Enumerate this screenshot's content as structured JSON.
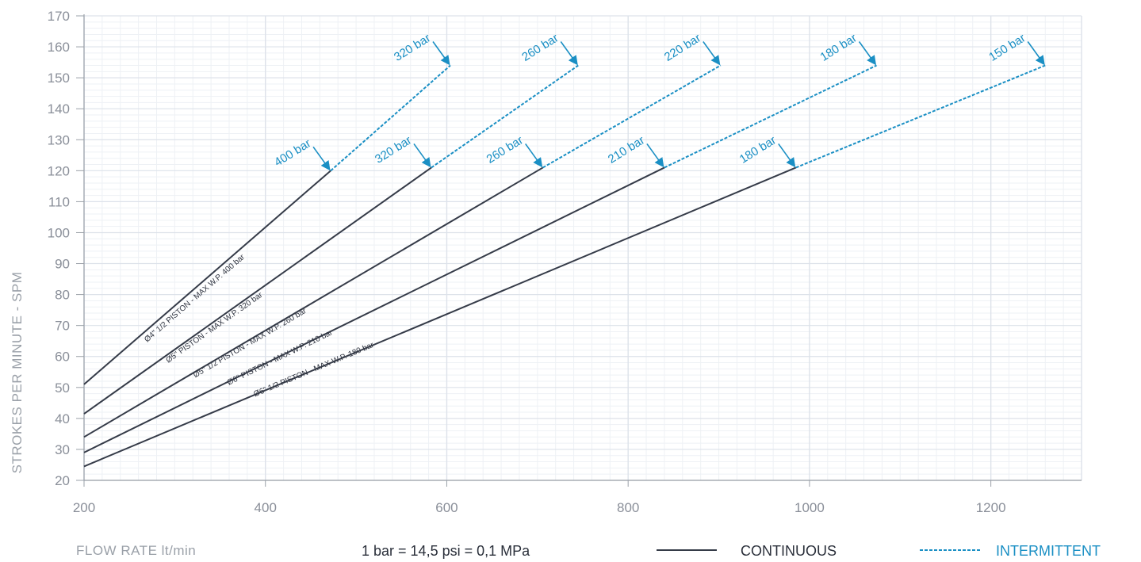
{
  "chart_data": {
    "type": "line",
    "xlabel": "FLOW RATE lt/min",
    "ylabel": "STROKES PER MINUTE - SPM",
    "xlim": [
      200,
      1300
    ],
    "ylim": [
      20,
      170
    ],
    "x_ticks": [
      "200",
      "400",
      "600",
      "800",
      "1000",
      "1200"
    ],
    "y_ticks": [
      "20",
      "30",
      "40",
      "50",
      "60",
      "70",
      "80",
      "90",
      "100",
      "110",
      "120",
      "130",
      "140",
      "150",
      "160",
      "170"
    ],
    "grid": true,
    "series": [
      {
        "name": "Ø4\" 1/2 PISTON - MAX W.P. 400 bar",
        "continuous": [
          [
            200,
            51
          ],
          [
            472,
            120
          ]
        ],
        "intermittent": [
          [
            472,
            120
          ],
          [
            604,
            154
          ]
        ],
        "continuous_pressure": "400 bar",
        "intermittent_pressure": "320 bar"
      },
      {
        "name": "Ø5\" PISTON - MAX W.P. 320 bar",
        "continuous": [
          [
            200,
            41.5
          ],
          [
            583,
            121
          ]
        ],
        "intermittent": [
          [
            583,
            121
          ],
          [
            745,
            154
          ]
        ],
        "continuous_pressure": "320 bar",
        "intermittent_pressure": "260 bar"
      },
      {
        "name": "Ø5\" 1/2 PISTON - MAX W.P. 260 bar",
        "continuous": [
          [
            200,
            34
          ],
          [
            706,
            121
          ]
        ],
        "intermittent": [
          [
            706,
            121
          ],
          [
            902,
            154
          ]
        ],
        "continuous_pressure": "260 bar",
        "intermittent_pressure": "220 bar"
      },
      {
        "name": "Ø6\" PISTON - MAX W.P. 210 bar",
        "continuous": [
          [
            200,
            29
          ],
          [
            840,
            121
          ]
        ],
        "intermittent": [
          [
            840,
            121
          ],
          [
            1074,
            154
          ]
        ],
        "continuous_pressure": "210 bar",
        "intermittent_pressure": "180 bar"
      },
      {
        "name": "Ø6\" 1/2 PISTON - MAX W.P. 180 bar",
        "continuous": [
          [
            200,
            24.5
          ],
          [
            985,
            121
          ]
        ],
        "intermittent": [
          [
            985,
            121
          ],
          [
            1260,
            154
          ]
        ],
        "continuous_pressure": "180 bar",
        "intermittent_pressure": "150 bar"
      }
    ]
  },
  "footer": {
    "conversion": "1 bar = 14,5 psi = 0,1 MPa",
    "legend_continuous": "CONTINUOUS",
    "legend_intermittent": "INTERMITTENT"
  },
  "colors": {
    "continuous": "#353b48",
    "intermittent": "#1a8fc4",
    "arrow": "#1a8fc4",
    "grid_major": "#dde2ea",
    "grid_minor": "#eef1f5"
  }
}
